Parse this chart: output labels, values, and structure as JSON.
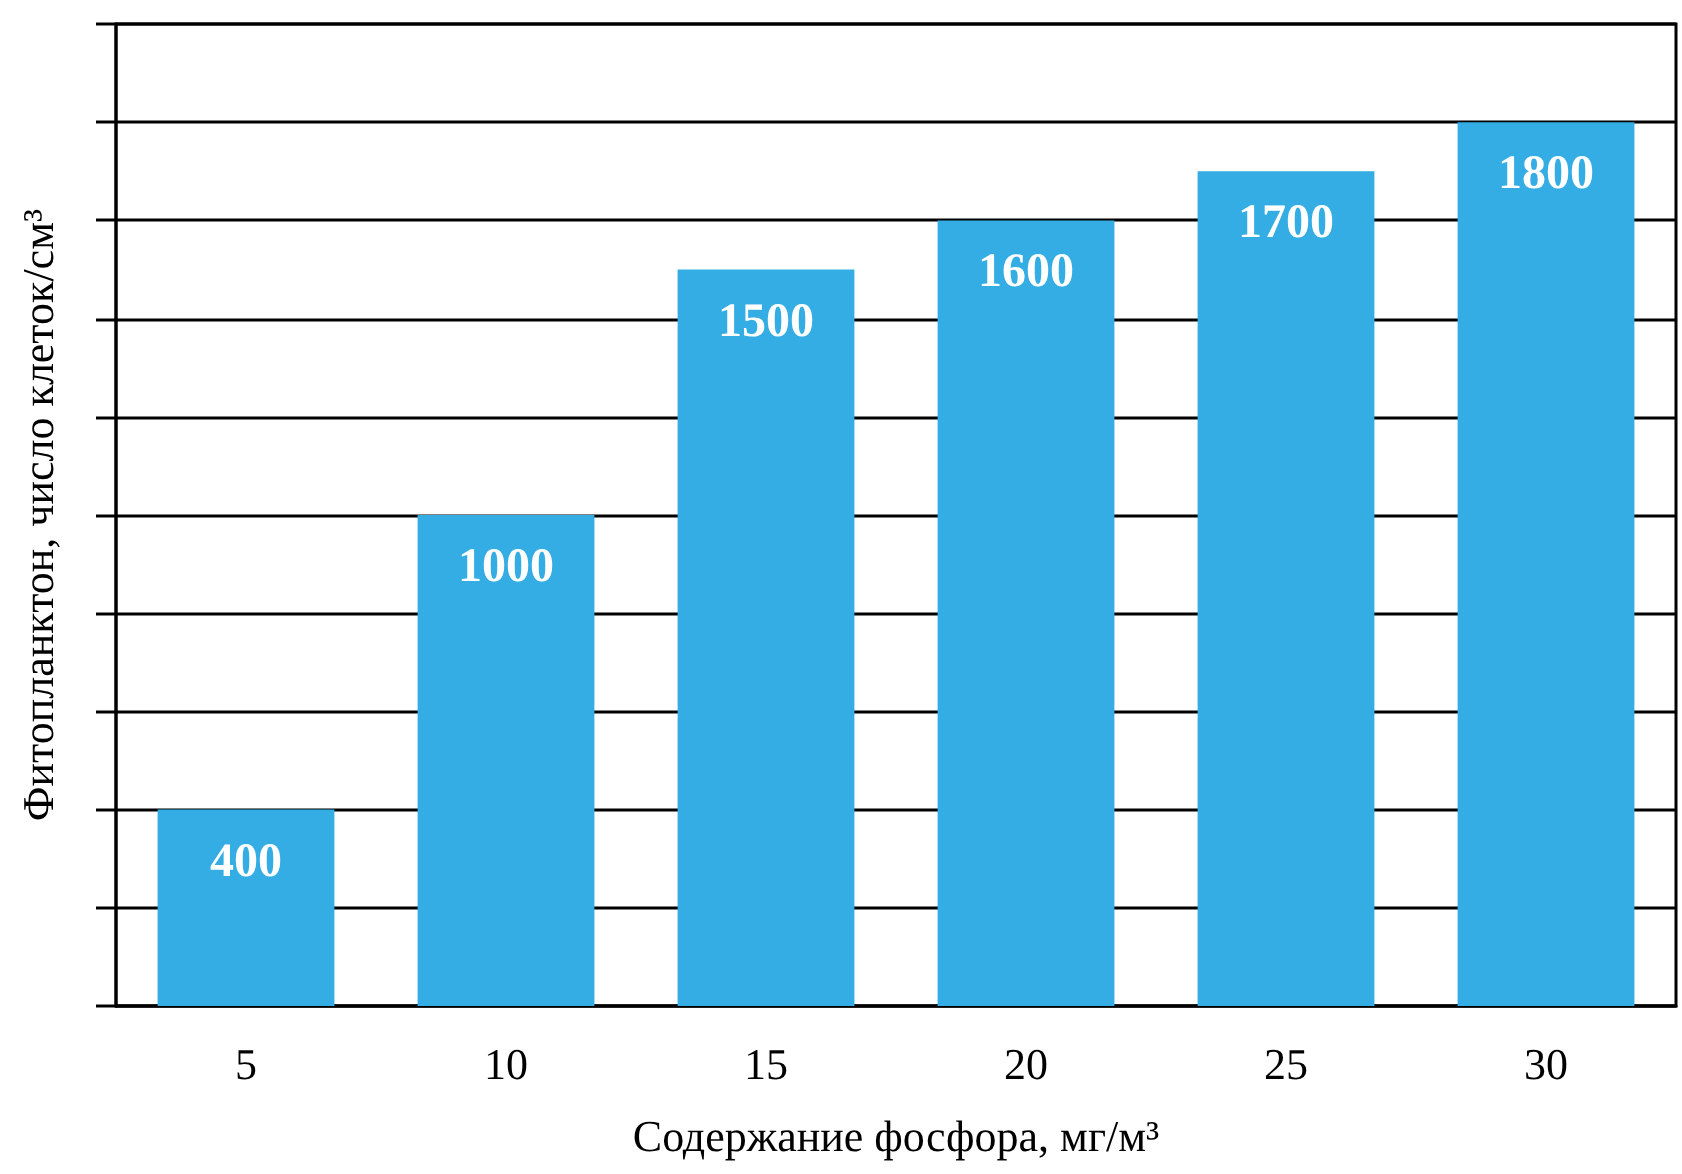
{
  "chart_data": {
    "type": "bar",
    "xlabel": "Содержание фосфора, мг/м³",
    "ylabel": "Фитопланктон, число клеток/см³",
    "categories": [
      "5",
      "10",
      "15",
      "20",
      "25",
      "30"
    ],
    "values": [
      400,
      1000,
      1500,
      1600,
      1700,
      1800
    ],
    "color": "#33ade3",
    "ylim": [
      0,
      2000
    ],
    "yticks": [
      {
        "value": 0,
        "label": null
      },
      {
        "value": 200,
        "label": null
      },
      {
        "value": 400,
        "label": null
      },
      {
        "value": 600,
        "label": null
      },
      {
        "value": 800,
        "label": null
      },
      {
        "value": 1000,
        "label": null
      },
      {
        "value": 1200,
        "label": null
      },
      {
        "value": 1400,
        "label": null
      },
      {
        "value": 1600,
        "label": null
      },
      {
        "value": 1800,
        "label": null
      },
      {
        "value": 2000,
        "label": null
      }
    ],
    "grid": "y",
    "tick_labels": "x",
    "data_labels": true
  }
}
